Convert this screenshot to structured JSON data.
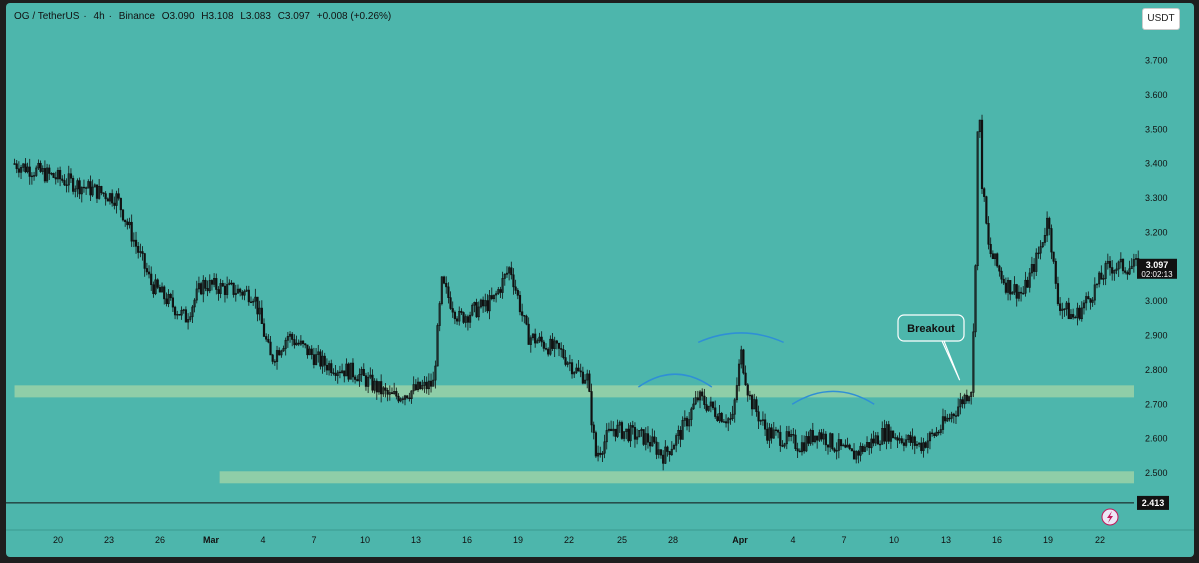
{
  "header": {
    "symbol": "OG / TetherUS",
    "interval": "4h",
    "exchange": "Binance",
    "open": "O3.090",
    "high": "H3.108",
    "low": "L3.083",
    "close": "C3.097",
    "change": "+0.008 (+0.26%)"
  },
  "currency_button": "USDT",
  "price_label": {
    "price": "3.097",
    "countdown": "02:02:13"
  },
  "line_label": "2.413",
  "annotation": "Breakout",
  "colors": {
    "background": "#4db6ac",
    "candle": "#111111",
    "zone": "#a5d6a7",
    "arc": "#2f8fd6",
    "callout": "#ffffff"
  },
  "chart_data": {
    "type": "candlestick",
    "xlabel": "",
    "ylabel": "",
    "x_ticks": [
      "20",
      "23",
      "26",
      "Mar",
      "4",
      "7",
      "10",
      "13",
      "16",
      "19",
      "22",
      "25",
      "28",
      "Apr",
      "4",
      "7",
      "10",
      "13",
      "16",
      "19",
      "22"
    ],
    "y_ticks": [
      "3.700",
      "3.600",
      "3.500",
      "3.400",
      "3.300",
      "3.200",
      "3.100",
      "3.000",
      "2.900",
      "2.800",
      "2.700",
      "2.600",
      "2.500"
    ],
    "ylim": [
      2.34,
      3.78
    ],
    "horizontal_line": 2.413,
    "zones": [
      {
        "from": 2.72,
        "to": 2.755,
        "start": "Feb 17",
        "end": "Apr 22"
      },
      {
        "from": 2.47,
        "to": 2.505,
        "start": "Mar 1",
        "end": "Apr 22"
      }
    ],
    "path": [
      [
        0,
        3.4
      ],
      [
        3,
        3.35
      ],
      [
        6,
        3.3
      ],
      [
        8,
        3.05
      ],
      [
        10,
        2.95
      ],
      [
        11,
        3.05
      ],
      [
        14,
        3.02
      ],
      [
        15,
        2.83
      ],
      [
        16,
        2.9
      ],
      [
        18,
        2.82
      ],
      [
        20,
        2.79
      ],
      [
        22,
        2.72
      ],
      [
        24,
        2.75
      ],
      [
        24.5,
        2.76
      ],
      [
        25,
        3.05
      ],
      [
        26,
        2.95
      ],
      [
        28,
        3.0
      ],
      [
        29,
        3.1
      ],
      [
        30,
        2.9
      ],
      [
        32,
        2.85
      ],
      [
        33,
        2.79
      ],
      [
        33.5,
        2.78
      ],
      [
        34,
        2.55
      ],
      [
        35,
        2.63
      ],
      [
        37,
        2.6
      ],
      [
        38,
        2.55
      ],
      [
        39,
        2.62
      ],
      [
        40,
        2.72
      ],
      [
        41,
        2.68
      ],
      [
        42,
        2.65
      ],
      [
        42.5,
        2.85
      ],
      [
        43,
        2.72
      ],
      [
        44,
        2.62
      ],
      [
        46,
        2.58
      ],
      [
        47,
        2.62
      ],
      [
        48,
        2.58
      ],
      [
        49,
        2.55
      ],
      [
        51,
        2.62
      ],
      [
        53,
        2.58
      ],
      [
        54,
        2.62
      ],
      [
        55,
        2.68
      ],
      [
        56,
        2.75
      ],
      [
        56.2,
        3.05
      ],
      [
        56.4,
        3.62
      ],
      [
        56.6,
        3.35
      ],
      [
        57,
        3.15
      ],
      [
        58,
        3.05
      ],
      [
        59,
        3.02
      ],
      [
        60,
        3.15
      ],
      [
        60.5,
        3.25
      ],
      [
        61,
        3.0
      ],
      [
        62,
        2.95
      ],
      [
        63,
        3.02
      ],
      [
        64,
        3.1
      ],
      [
        65,
        3.1
      ]
    ],
    "x_index_range": [
      -0.5,
      65.5
    ],
    "arcs": [
      {
        "from": 36.5,
        "to": 40.8,
        "level": 2.75,
        "peak": 2.79
      },
      {
        "from": 40,
        "to": 45,
        "level": 2.88,
        "peak": 2.9
      },
      {
        "from": 45.5,
        "to": 50.3,
        "level": 2.7,
        "peak": 2.74
      }
    ],
    "last_price": 3.097
  }
}
